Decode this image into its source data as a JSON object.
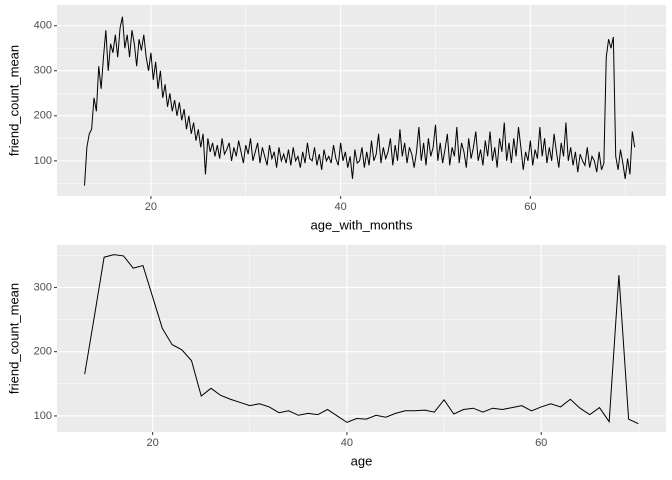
{
  "chart_data": [
    {
      "type": "line",
      "xlabel": "age_with_months",
      "ylabel": "friend_count_mean",
      "color": "#000000",
      "grid": true,
      "xlim": [
        10.1,
        74.3
      ],
      "ylim": [
        22,
        446
      ],
      "xticks": [
        20,
        40,
        60
      ],
      "yticks": [
        100,
        200,
        300,
        400
      ],
      "x": [
        13,
        13.25,
        13.5,
        13.75,
        14,
        14.25,
        14.5,
        14.75,
        15,
        15.25,
        15.5,
        15.75,
        16,
        16.25,
        16.5,
        16.75,
        17,
        17.25,
        17.5,
        17.75,
        18,
        18.25,
        18.5,
        18.75,
        19,
        19.25,
        19.5,
        19.75,
        20,
        20.25,
        20.5,
        20.75,
        21,
        21.25,
        21.5,
        21.75,
        22,
        22.25,
        22.5,
        22.75,
        23,
        23.25,
        23.5,
        23.75,
        24,
        24.25,
        24.5,
        24.75,
        25,
        25.25,
        25.5,
        25.75,
        26,
        26.25,
        26.5,
        26.75,
        27,
        27.25,
        27.5,
        27.75,
        28,
        28.25,
        28.5,
        28.75,
        29,
        29.25,
        29.5,
        29.75,
        30,
        30.25,
        30.5,
        30.75,
        31,
        31.25,
        31.5,
        31.75,
        32,
        32.25,
        32.5,
        32.75,
        33,
        33.25,
        33.5,
        33.75,
        34,
        34.25,
        34.5,
        34.75,
        35,
        35.25,
        35.5,
        35.75,
        36,
        36.25,
        36.5,
        36.75,
        37,
        37.25,
        37.5,
        37.75,
        38,
        38.25,
        38.5,
        38.75,
        39,
        39.25,
        39.5,
        39.75,
        40,
        40.25,
        40.5,
        40.75,
        41,
        41.25,
        41.5,
        41.75,
        42,
        42.25,
        42.5,
        42.75,
        43,
        43.25,
        43.5,
        43.75,
        44,
        44.25,
        44.5,
        44.75,
        45,
        45.25,
        45.5,
        45.75,
        46,
        46.25,
        46.5,
        46.75,
        47,
        47.25,
        47.5,
        47.75,
        48,
        48.25,
        48.5,
        48.75,
        49,
        49.25,
        49.5,
        49.75,
        50,
        50.25,
        50.5,
        50.75,
        51,
        51.25,
        51.5,
        51.75,
        52,
        52.25,
        52.5,
        52.75,
        53,
        53.25,
        53.5,
        53.75,
        54,
        54.25,
        54.5,
        54.75,
        55,
        55.25,
        55.5,
        55.75,
        56,
        56.25,
        56.5,
        56.75,
        57,
        57.25,
        57.5,
        57.75,
        58,
        58.25,
        58.5,
        58.75,
        59,
        59.25,
        59.5,
        59.75,
        60,
        60.25,
        60.5,
        60.75,
        61,
        61.25,
        61.5,
        61.75,
        62,
        62.25,
        62.5,
        62.75,
        63,
        63.25,
        63.5,
        63.75,
        64,
        64.25,
        64.5,
        64.75,
        65,
        65.25,
        65.5,
        65.75,
        66,
        66.25,
        66.5,
        66.75,
        67,
        67.25,
        67.5,
        67.75,
        68,
        68.25,
        68.5,
        68.75,
        69,
        69.25,
        69.5,
        69.75,
        70,
        70.25,
        70.5,
        70.75,
        71
      ],
      "values": [
        45,
        130,
        160,
        170,
        240,
        210,
        310,
        260,
        330,
        390,
        300,
        360,
        340,
        380,
        330,
        395,
        420,
        350,
        380,
        330,
        390,
        360,
        310,
        370,
        345,
        380,
        330,
        300,
        340,
        280,
        320,
        260,
        300,
        240,
        270,
        220,
        250,
        210,
        235,
        200,
        230,
        190,
        215,
        170,
        200,
        160,
        185,
        145,
        170,
        130,
        160,
        70,
        150,
        120,
        140,
        110,
        135,
        105,
        150,
        115,
        125,
        140,
        100,
        130,
        110,
        145,
        120,
        95,
        135,
        115,
        150,
        100,
        120,
        140,
        95,
        130,
        110,
        90,
        135,
        105,
        120,
        85,
        130,
        100,
        115,
        95,
        125,
        90,
        130,
        100,
        110,
        85,
        120,
        95,
        140,
        105,
        100,
        130,
        90,
        115,
        80,
        125,
        100,
        110,
        95,
        135,
        105,
        90,
        140,
        100,
        120,
        85,
        110,
        60,
        125,
        95,
        100,
        130,
        85,
        120,
        90,
        145,
        100,
        115,
        160,
        95,
        130,
        105,
        120,
        150,
        90,
        135,
        100,
        170,
        110,
        140,
        95,
        130,
        115,
        85,
        120,
        175,
        100,
        140,
        90,
        150,
        110,
        130,
        180,
        100,
        140,
        95,
        125,
        160,
        90,
        130,
        110,
        175,
        95,
        140,
        120,
        85,
        150,
        105,
        130,
        165,
        100,
        125,
        90,
        145,
        110,
        165,
        100,
        130,
        85,
        150,
        120,
        185,
        100,
        140,
        95,
        150,
        110,
        175,
        130,
        80,
        120,
        100,
        145,
        90,
        125,
        105,
        175,
        110,
        150,
        95,
        130,
        100,
        160,
        120,
        85,
        140,
        110,
        185,
        100,
        130,
        90,
        120,
        75,
        115,
        100,
        90,
        130,
        85,
        110,
        100,
        75,
        120,
        80,
        95,
        330,
        370,
        350,
        375,
        110,
        80,
        125,
        95,
        60,
        105,
        70,
        165,
        130
      ]
    },
    {
      "type": "line",
      "xlabel": "age",
      "ylabel": "friend_count_mean",
      "color": "#000000",
      "grid": true,
      "xlim": [
        10.15,
        72.85
      ],
      "ylim": [
        75,
        366
      ],
      "xticks": [
        20,
        40,
        60
      ],
      "yticks": [
        100,
        200,
        300
      ],
      "x": [
        13,
        14,
        15,
        16,
        17,
        18,
        19,
        20,
        21,
        22,
        23,
        24,
        25,
        26,
        27,
        28,
        29,
        30,
        31,
        32,
        33,
        34,
        35,
        36,
        37,
        38,
        39,
        40,
        41,
        42,
        43,
        44,
        45,
        46,
        47,
        48,
        49,
        50,
        51,
        52,
        53,
        54,
        55,
        56,
        57,
        58,
        59,
        60,
        61,
        62,
        63,
        64,
        65,
        66,
        67,
        68,
        69,
        70
      ],
      "values": [
        165,
        255,
        347,
        351,
        349,
        330,
        334,
        285,
        236,
        211,
        203,
        186,
        131,
        143,
        132,
        126,
        121,
        116,
        119,
        114,
        105,
        108,
        101,
        104,
        102,
        110,
        100,
        90,
        96,
        95,
        101,
        98,
        104,
        108,
        108,
        109,
        106,
        125,
        103,
        110,
        112,
        106,
        112,
        110,
        113,
        116,
        108,
        114,
        119,
        114,
        126,
        112,
        102,
        113,
        91,
        319,
        95,
        88
      ]
    }
  ]
}
